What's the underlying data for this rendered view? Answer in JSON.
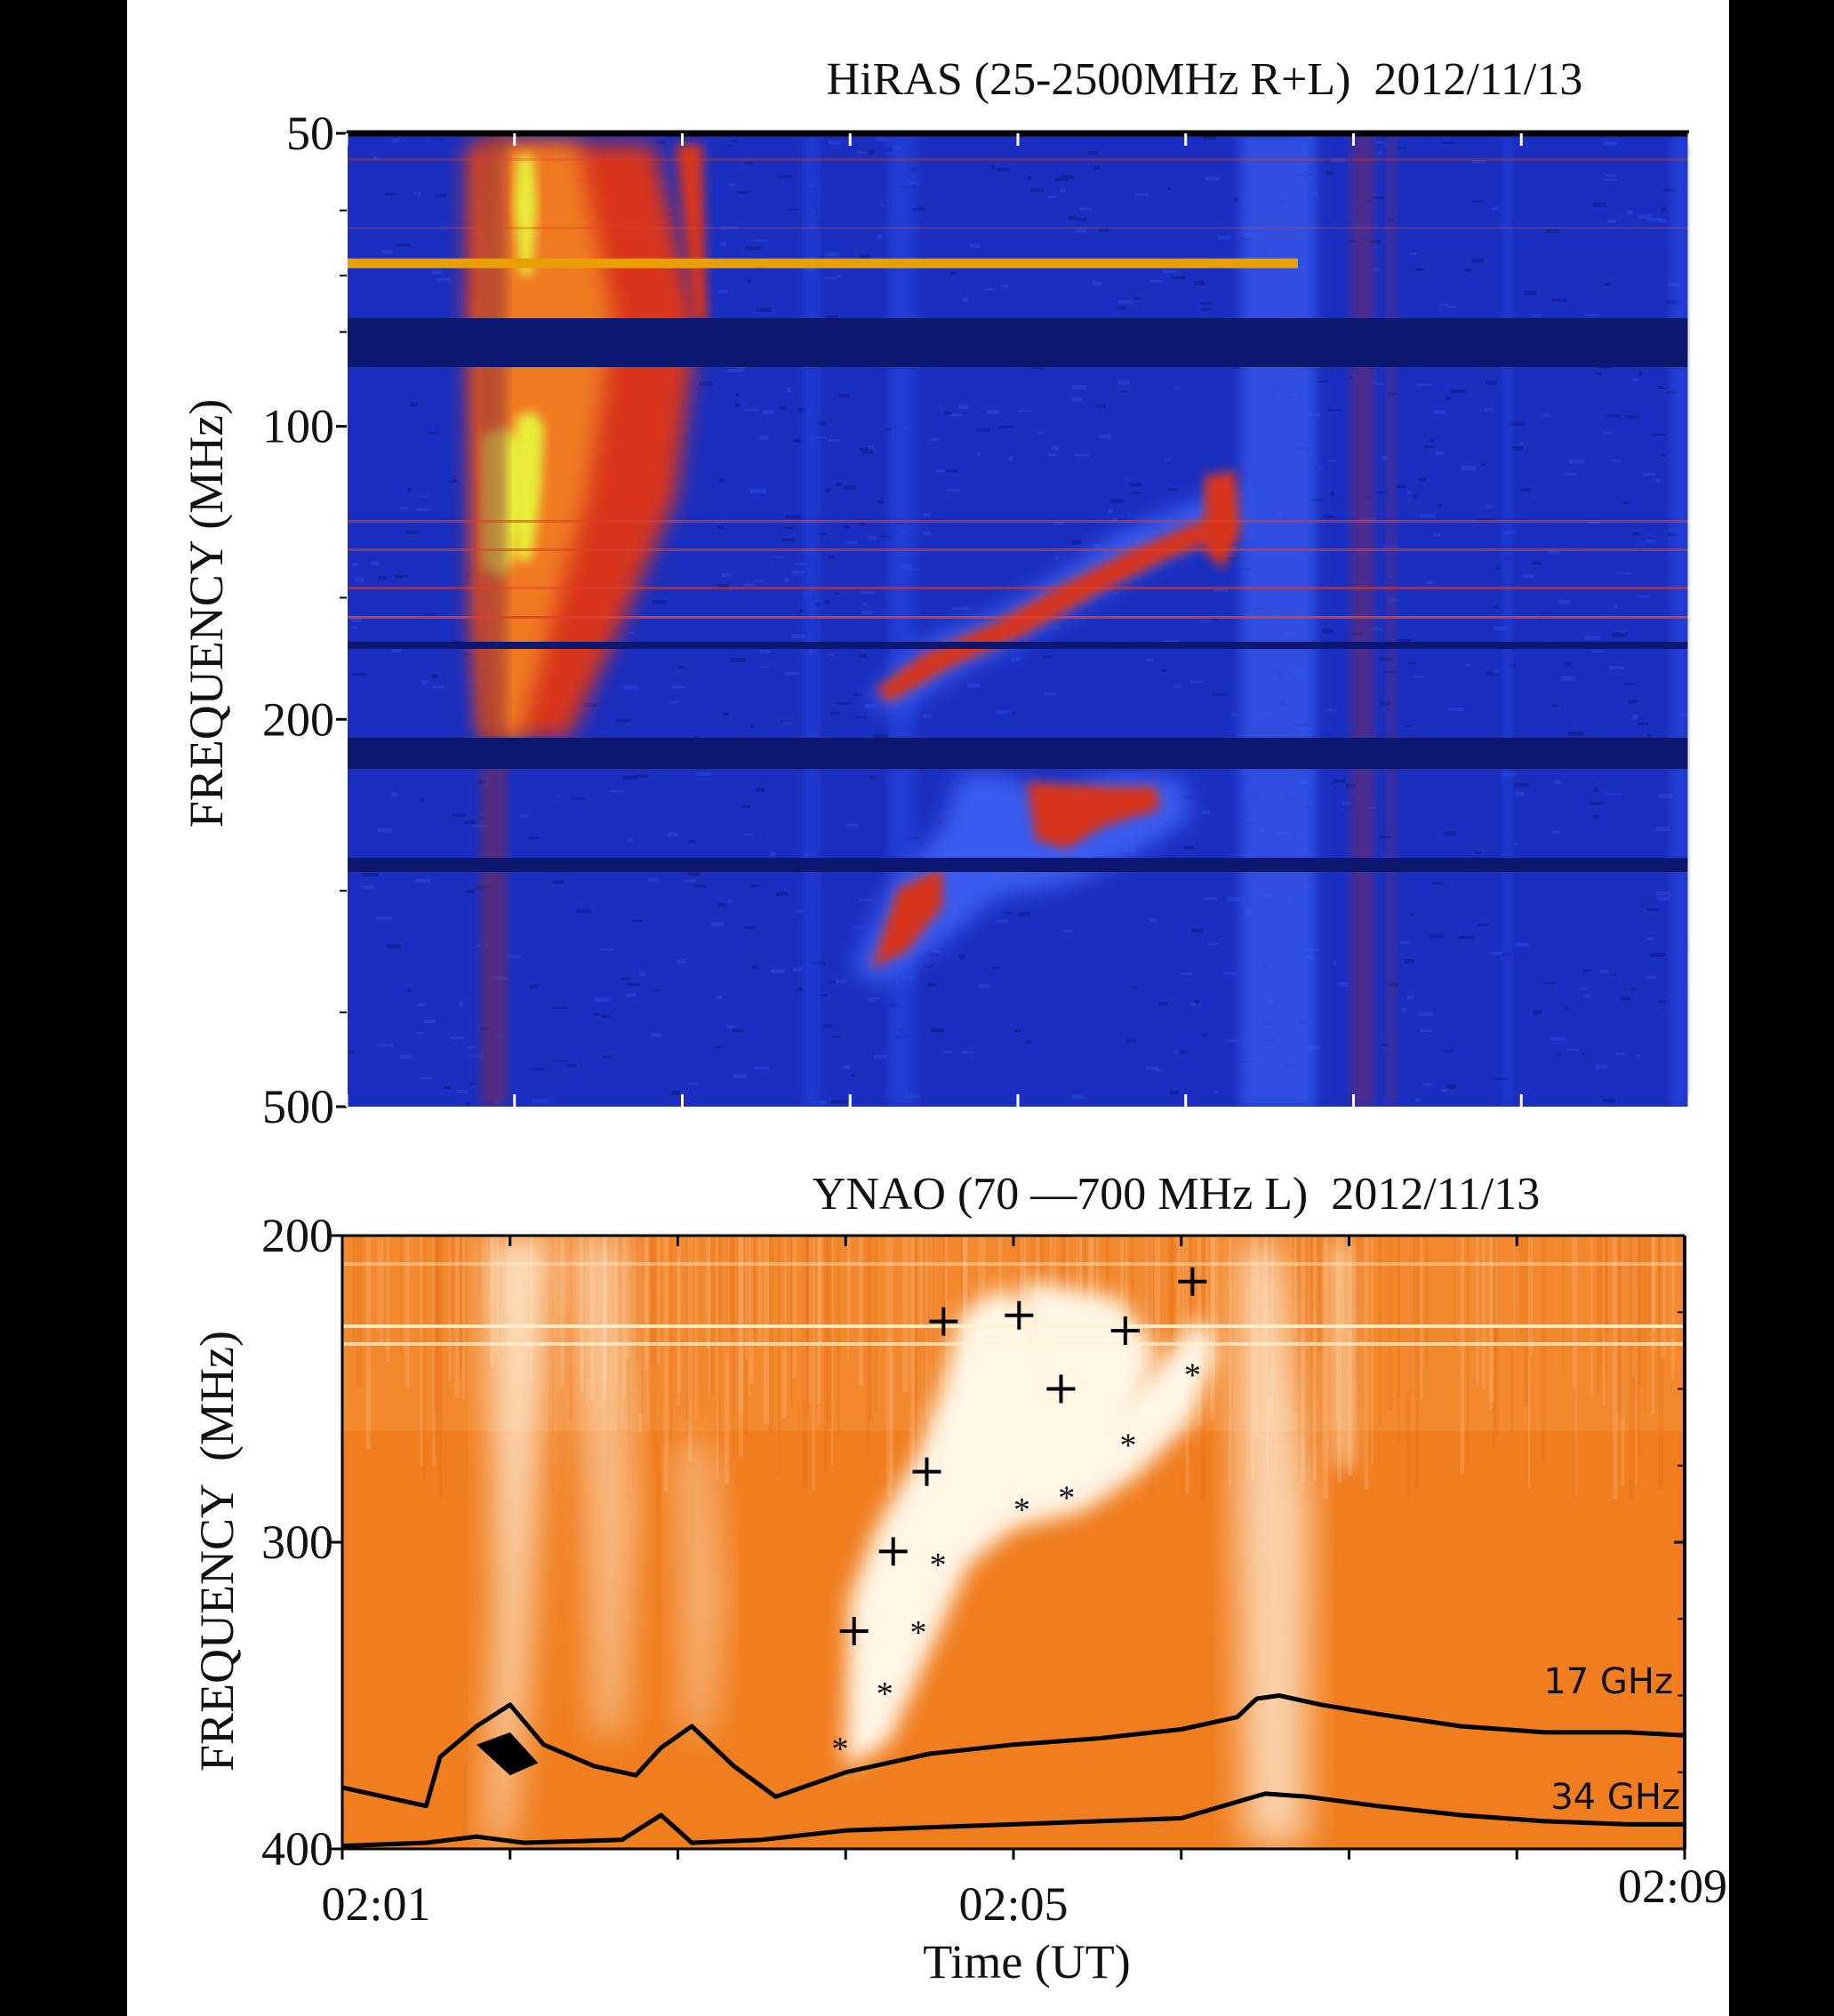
{
  "colors": {
    "page_background": "#ffffff",
    "outer_background": "#000000",
    "hiras_background": "#1a2fc0",
    "hiras_band_dark": "#0c1870",
    "hiras_emission_red": "#d8341c",
    "hiras_emission_orange": "#f07a22",
    "hiras_peak_yellow": "#e8ee3a",
    "hiras_marker_line": "#e8a000",
    "ynao_background": "#f07d1e",
    "ynao_emission_white": "#fff6e6",
    "curve_color": "#000000"
  },
  "chart_data": [
    {
      "type": "heatmap",
      "title": "HiRAS (25-2500MHz R+L)  2012/11/13",
      "ylabel": "FREQUENCY (MHz)",
      "xlabel": "",
      "yscale": "log",
      "ylim": [
        500,
        50
      ],
      "yticks": [
        50,
        100,
        200,
        500
      ],
      "ytick_labels": [
        "50",
        "100",
        "200",
        "500"
      ],
      "xlim": [
        "02:01",
        "02:09"
      ],
      "xticks": [
        "02:01",
        "02:02",
        "02:03",
        "02:04",
        "02:05",
        "02:06",
        "02:07",
        "02:08",
        "02:09"
      ],
      "xtick_labels": [],
      "colormap": [
        "#1a2fc0",
        "#d8341c",
        "#f07a22",
        "#e8ee3a"
      ],
      "features": [
        {
          "kind": "broadband_burst",
          "t_start": "02:01:45",
          "t_end": "02:02:50",
          "f_low": 55,
          "f_high": 280,
          "peak_f": [
            105,
            140
          ]
        },
        {
          "kind": "drifting_lane",
          "points": [
            [
              "02:04:10",
              300
            ],
            [
              "02:04:35",
              255
            ],
            [
              "02:05:15",
              235
            ],
            [
              "02:05:50",
              225
            ],
            [
              "02:06:00",
              230
            ]
          ]
        },
        {
          "kind": "drifting_lane",
          "points": [
            [
              "02:04:10",
              185
            ],
            [
              "02:04:40",
              165
            ],
            [
              "02:05:20",
              145
            ],
            [
              "02:05:50",
              130
            ],
            [
              "02:06:20",
              120
            ]
          ]
        },
        {
          "kind": "horizontal_marker",
          "f": 68,
          "t_start": "02:01",
          "t_end": "02:06:45"
        }
      ]
    },
    {
      "type": "heatmap",
      "title": "YNAO (70 —700 MHz L)  2012/11/13",
      "ylabel": "FREQUENCY  (MHz)",
      "xlabel": "Time (UT)",
      "ylim": [
        400,
        200
      ],
      "yticks": [
        200,
        300,
        400
      ],
      "ytick_labels": [
        "200",
        "300",
        "400"
      ],
      "xlim": [
        "02:01",
        "02:09"
      ],
      "xticks": [
        "02:01",
        "02:02",
        "02:03",
        "02:04",
        "02:05",
        "02:06",
        "02:07",
        "02:08",
        "02:09"
      ],
      "xtick_labels": [
        "02:01",
        "",
        "",
        "",
        "02:05",
        "",
        "",
        "",
        "02:09"
      ],
      "colormap": [
        "#f07d1e",
        "#fff6e6"
      ],
      "marker_series": [
        {
          "marker": "+",
          "points": [
            {
              "t": "02:04:03",
              "f": 329
            },
            {
              "t": "02:04:17",
              "f": 303
            },
            {
              "t": "02:04:29",
              "f": 277
            },
            {
              "t": "02:04:35",
              "f": 228
            },
            {
              "t": "02:05:02",
              "f": 226
            },
            {
              "t": "02:05:17",
              "f": 250
            },
            {
              "t": "02:05:40",
              "f": 231
            },
            {
              "t": "02:06:04",
              "f": 215
            }
          ]
        },
        {
          "marker": "*",
          "points": [
            {
              "t": "02:03:58",
              "f": 367
            },
            {
              "t": "02:04:14",
              "f": 349
            },
            {
              "t": "02:04:26",
              "f": 329
            },
            {
              "t": "02:04:33",
              "f": 307
            },
            {
              "t": "02:05:03",
              "f": 289
            },
            {
              "t": "02:05:19",
              "f": 285
            },
            {
              "t": "02:05:41",
              "f": 268
            },
            {
              "t": "02:06:04",
              "f": 245
            }
          ]
        }
      ],
      "overlay_curves": [
        {
          "name": "17 GHz",
          "x": [
            "02:01:00",
            "02:01:20",
            "02:01:30",
            "02:01:35",
            "02:01:48",
            "02:02:00",
            "02:02:12",
            "02:02:30",
            "02:02:45",
            "02:02:54",
            "02:03:05",
            "02:03:20",
            "02:03:35",
            "02:04:00",
            "02:04:30",
            "02:05:00",
            "02:05:30",
            "02:06:00",
            "02:06:20",
            "02:06:27",
            "02:06:35",
            "02:06:50",
            "02:07:10",
            "02:07:40",
            "02:08:10",
            "02:08:40",
            "02:09:00"
          ],
          "y": [
            380,
            384,
            386,
            370,
            360,
            353,
            366,
            373,
            376,
            367,
            360,
            373,
            383,
            375,
            369,
            366,
            364,
            361,
            357,
            351,
            350,
            353,
            356,
            360,
            362,
            362,
            363
          ]
        },
        {
          "name": "34 GHz",
          "x": [
            "02:01:00",
            "02:01:30",
            "02:01:48",
            "02:02:05",
            "02:02:40",
            "02:02:54",
            "02:03:05",
            "02:03:30",
            "02:04:00",
            "02:04:30",
            "02:05:00",
            "02:05:30",
            "02:06:00",
            "02:06:15",
            "02:06:30",
            "02:06:45",
            "02:07:10",
            "02:07:40",
            "02:08:10",
            "02:08:40",
            "02:09:00"
          ],
          "y": [
            399,
            398,
            396,
            398,
            397,
            389,
            398,
            397,
            394,
            393,
            392,
            391,
            390,
            386,
            382,
            383,
            386,
            389,
            391,
            392,
            392
          ]
        }
      ],
      "overlay_labels": [
        "17 GHz",
        "34 GHz"
      ]
    }
  ]
}
